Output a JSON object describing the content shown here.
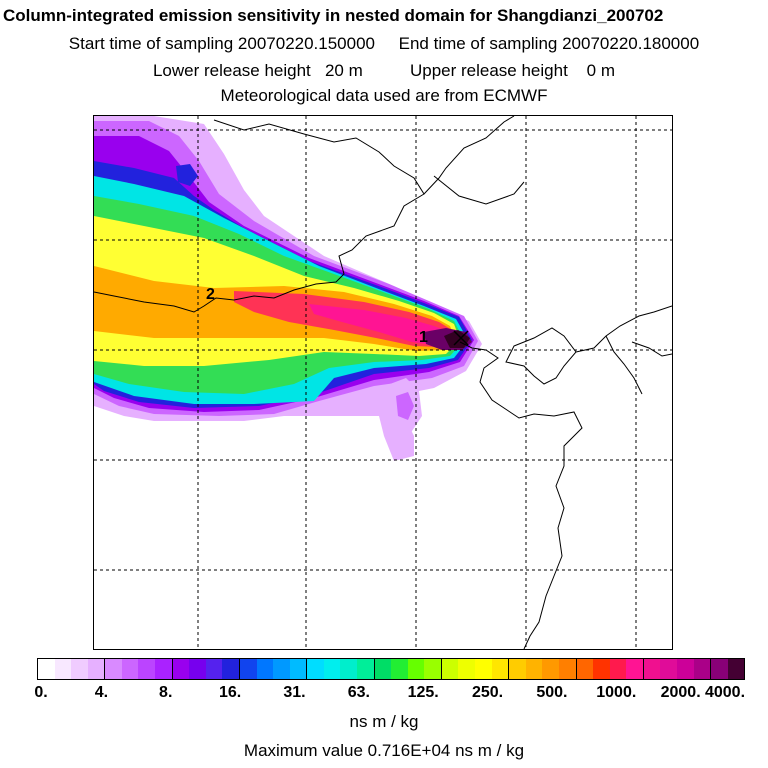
{
  "header": {
    "title": "Column-integrated emission sensitivity in nested domain for Shangdianzi_200702",
    "line2": "Start time of sampling 20070220.150000     End time of sampling 20070220.180000",
    "line3": "Lower release height   20 m          Upper release height    0 m",
    "line4": "Meteorological data used are from ECMWF"
  },
  "map": {
    "markers": [
      {
        "label": "1",
        "meaning": "release location"
      },
      {
        "label": "2"
      }
    ],
    "gridlines": "dashed",
    "plume_colors": {
      "outer": "#cc66ff",
      "violet": "#9900ee",
      "blue": "#2222dd",
      "cyan": "#00e5e5",
      "green": "#33dd55",
      "yellow": "#ffff33",
      "orange": "#ffaa00",
      "red": "#ff3355",
      "magenta": "#ff1493",
      "dark": "#440033"
    }
  },
  "colorbar": {
    "tick_labels": [
      "0.",
      "4.",
      "8.",
      "16.",
      "31.",
      "63.",
      "125.",
      "250.",
      "500.",
      "1000.",
      "2000.",
      "4000."
    ],
    "colors": [
      "#ffffff",
      "#f8e8ff",
      "#f0ccff",
      "#e6b0ff",
      "#d98aff",
      "#cc66ff",
      "#bb44ff",
      "#aa22ff",
      "#9900ee",
      "#7700ee",
      "#5522ee",
      "#2222dd",
      "#1144ee",
      "#0077ff",
      "#0099ff",
      "#00bbff",
      "#00ddff",
      "#00eeee",
      "#00eecc",
      "#00ee99",
      "#00dd66",
      "#22ee33",
      "#66ff00",
      "#99ff00",
      "#ccff00",
      "#eeff00",
      "#ffff00",
      "#ffe600",
      "#ffcc00",
      "#ffb300",
      "#ff9900",
      "#ff7f00",
      "#ff6600",
      "#ff3300",
      "#ff1a4d",
      "#ff1493",
      "#f0108f",
      "#e00c99",
      "#cc0099",
      "#aa0088",
      "#880077",
      "#440033"
    ]
  },
  "unit_label": "ns m / kg",
  "max_value_text": "Maximum value  0.716E+04 ns m / kg"
}
